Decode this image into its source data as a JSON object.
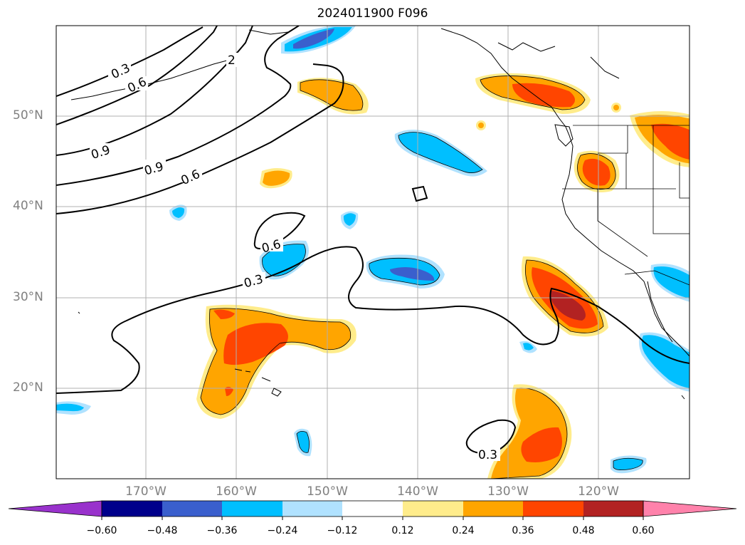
{
  "title": "2024011900 F096",
  "map": {
    "lat_labels": [
      "50°N",
      "40°N",
      "30°N",
      "20°N"
    ],
    "lon_labels": [
      "170°W",
      "160°W",
      "150°W",
      "140°W",
      "130°W",
      "120°W"
    ],
    "contour_labels": {
      "c1": "0.3",
      "c2": "0.6",
      "c3": "0.9",
      "c4": "0.9",
      "c5": "0.6",
      "c6": "0.6",
      "c7": "0.3",
      "c8": "0.3",
      "c9": "2"
    },
    "colors": {
      "neg_060": "#9932cc",
      "neg_048": "#00008b",
      "neg_036": "#3a5fcd",
      "neg_024": "#00bfff",
      "neg_012": "#b0e2ff",
      "pos_012": "#ffec8b",
      "pos_024": "#ffa500",
      "pos_036": "#ff4500",
      "pos_048": "#b22222",
      "pos_060": "#ff82ab"
    }
  },
  "colorbar": {
    "ticks": [
      "−0.60",
      "−0.48",
      "−0.36",
      "−0.24",
      "−0.12",
      "0.12",
      "0.24",
      "0.36",
      "0.48",
      "0.60"
    ]
  }
}
